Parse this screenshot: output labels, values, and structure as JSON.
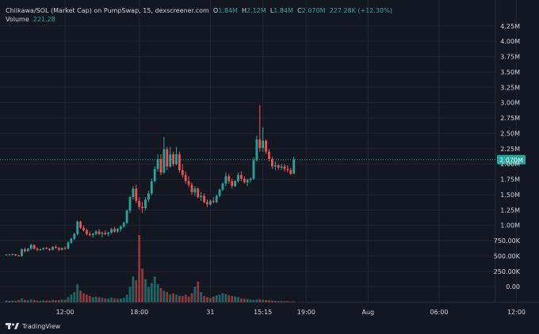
{
  "header": {
    "symbol": "Chiikawa/SOL (Market Cap) on PumpSwap, 15, dexscreener.com",
    "open_label": "O",
    "open_value": "1.84M",
    "high_label": "H",
    "high_value": "2.12M",
    "low_label": "L",
    "low_value": "1.84M",
    "close_label": "C",
    "close_value": "2.070M",
    "change": "227.28K (+12.30%)"
  },
  "volume": {
    "label": "Volume",
    "value": "221.28"
  },
  "branding": {
    "label": "TradingView"
  },
  "colors": {
    "up": "#26a69a",
    "down": "#ef5350",
    "background": "#131722",
    "grid": "#1f2433",
    "text": "#d1d4dc"
  },
  "chart_data": {
    "type": "candlestick",
    "y_unit": "market cap (USD)",
    "ylim": [
      -100000,
      4350000
    ],
    "y_ticks": [
      "0.00",
      "250.00K",
      "500.00K",
      "750.00K",
      "1.00M",
      "1.25M",
      "1.50M",
      "1.75M",
      "2.00M",
      "2.25M",
      "2.50M",
      "2.75M",
      "3.00M",
      "3.25M",
      "3.50M",
      "3.75M",
      "4.00M",
      "4.25M"
    ],
    "y_tick_values": [
      0,
      250000,
      500000,
      750000,
      1000000,
      1250000,
      1500000,
      1750000,
      2000000,
      2250000,
      2500000,
      2750000,
      3000000,
      3250000,
      3500000,
      3750000,
      4000000,
      4250000
    ],
    "x_ticks": [
      "12:00",
      "18:00",
      "31",
      "15:15",
      "19:00",
      "Aug",
      "06:00",
      "12:00"
    ],
    "x_tick_candle_index": [
      19,
      43,
      66,
      83,
      97,
      117,
      140,
      165
    ],
    "last_price": 2070000,
    "last_price_label": "2.070M",
    "candles": [
      [
        520000,
        530000,
        510000,
        525000
      ],
      [
        525000,
        535000,
        515000,
        520000
      ],
      [
        520000,
        540000,
        510000,
        530000
      ],
      [
        530000,
        525000,
        500000,
        510000
      ],
      [
        510000,
        520000,
        490000,
        500000
      ],
      [
        500000,
        620000,
        490000,
        610000
      ],
      [
        610000,
        640000,
        560000,
        580000
      ],
      [
        580000,
        630000,
        570000,
        620000
      ],
      [
        620000,
        700000,
        600000,
        680000
      ],
      [
        680000,
        690000,
        600000,
        620000
      ],
      [
        620000,
        640000,
        580000,
        600000
      ],
      [
        600000,
        620000,
        580000,
        610000
      ],
      [
        610000,
        640000,
        600000,
        630000
      ],
      [
        630000,
        650000,
        610000,
        620000
      ],
      [
        620000,
        630000,
        580000,
        600000
      ],
      [
        600000,
        660000,
        590000,
        650000
      ],
      [
        650000,
        680000,
        620000,
        630000
      ],
      [
        630000,
        650000,
        580000,
        600000
      ],
      [
        600000,
        640000,
        590000,
        630000
      ],
      [
        630000,
        660000,
        600000,
        620000
      ],
      [
        620000,
        740000,
        610000,
        720000
      ],
      [
        720000,
        800000,
        700000,
        780000
      ],
      [
        780000,
        880000,
        760000,
        860000
      ],
      [
        860000,
        1080000,
        840000,
        1060000
      ],
      [
        1060000,
        1080000,
        940000,
        960000
      ],
      [
        960000,
        1000000,
        900000,
        920000
      ],
      [
        920000,
        940000,
        840000,
        860000
      ],
      [
        860000,
        900000,
        820000,
        840000
      ],
      [
        840000,
        880000,
        800000,
        860000
      ],
      [
        860000,
        920000,
        840000,
        900000
      ],
      [
        900000,
        940000,
        840000,
        860000
      ],
      [
        860000,
        900000,
        800000,
        880000
      ],
      [
        880000,
        920000,
        840000,
        860000
      ],
      [
        860000,
        900000,
        820000,
        880000
      ],
      [
        880000,
        960000,
        860000,
        940000
      ],
      [
        940000,
        980000,
        880000,
        900000
      ],
      [
        900000,
        960000,
        880000,
        940000
      ],
      [
        940000,
        1000000,
        900000,
        980000
      ],
      [
        980000,
        1060000,
        960000,
        1040000
      ],
      [
        1040000,
        1260000,
        1020000,
        1240000
      ],
      [
        1240000,
        1480000,
        1200000,
        1460000
      ],
      [
        1460000,
        1640000,
        1420000,
        1600000
      ],
      [
        1600000,
        1660000,
        1360000,
        1400000
      ],
      [
        1400000,
        1460000,
        1260000,
        1300000
      ],
      [
        1300000,
        1380000,
        1200000,
        1280000
      ],
      [
        1280000,
        1460000,
        1250000,
        1420000
      ],
      [
        1420000,
        1560000,
        1380000,
        1520000
      ],
      [
        1520000,
        1760000,
        1490000,
        1720000
      ],
      [
        1720000,
        1960000,
        1700000,
        1920000
      ],
      [
        1920000,
        2160000,
        1880000,
        2080000
      ],
      [
        2080000,
        2160000,
        1820000,
        1860000
      ],
      [
        1860000,
        2440000,
        1840000,
        2240000
      ],
      [
        2240000,
        2280000,
        1900000,
        1960000
      ],
      [
        1960000,
        2280000,
        1940000,
        2160000
      ],
      [
        2160000,
        2200000,
        1960000,
        2000000
      ],
      [
        2000000,
        2280000,
        1980000,
        2160000
      ],
      [
        2160000,
        2200000,
        1860000,
        1900000
      ],
      [
        1900000,
        2000000,
        1780000,
        1820000
      ],
      [
        1820000,
        1880000,
        1680000,
        1720000
      ],
      [
        1720000,
        1800000,
        1620000,
        1660000
      ],
      [
        1660000,
        1700000,
        1500000,
        1540000
      ],
      [
        1540000,
        1640000,
        1480000,
        1600000
      ],
      [
        1600000,
        1620000,
        1440000,
        1460000
      ],
      [
        1460000,
        1540000,
        1400000,
        1480000
      ],
      [
        1480000,
        1520000,
        1360000,
        1380000
      ],
      [
        1380000,
        1420000,
        1300000,
        1340000
      ],
      [
        1340000,
        1420000,
        1320000,
        1400000
      ],
      [
        1400000,
        1460000,
        1360000,
        1380000
      ],
      [
        1380000,
        1500000,
        1360000,
        1480000
      ],
      [
        1480000,
        1600000,
        1460000,
        1580000
      ],
      [
        1580000,
        1700000,
        1560000,
        1680000
      ],
      [
        1680000,
        1860000,
        1640000,
        1800000
      ],
      [
        1800000,
        1840000,
        1680000,
        1720000
      ],
      [
        1720000,
        1760000,
        1600000,
        1640000
      ],
      [
        1640000,
        1740000,
        1620000,
        1720000
      ],
      [
        1720000,
        1860000,
        1700000,
        1820000
      ],
      [
        1820000,
        1880000,
        1720000,
        1760000
      ],
      [
        1760000,
        1800000,
        1680000,
        1700000
      ],
      [
        1700000,
        1760000,
        1640000,
        1740000
      ],
      [
        1740000,
        1780000,
        1700000,
        1760000
      ],
      [
        1760000,
        2100000,
        1740000,
        2060000
      ],
      [
        2060000,
        2460000,
        2040000,
        2400000
      ],
      [
        2400000,
        2960000,
        2200000,
        2260000
      ],
      [
        2260000,
        2600000,
        2200000,
        2380000
      ],
      [
        2380000,
        2400000,
        2160000,
        2200000
      ],
      [
        2200000,
        2240000,
        2040000,
        2080000
      ],
      [
        2080000,
        2120000,
        1920000,
        1960000
      ],
      [
        1960000,
        2040000,
        1900000,
        1980000
      ],
      [
        1980000,
        2000000,
        1900000,
        1940000
      ],
      [
        1940000,
        2000000,
        1900000,
        1960000
      ],
      [
        1960000,
        2000000,
        1880000,
        1920000
      ],
      [
        1920000,
        1980000,
        1860000,
        1900000
      ],
      [
        1900000,
        1940000,
        1820000,
        1840000
      ],
      [
        1840000,
        2120000,
        1840000,
        2070000
      ]
    ],
    "volume": [
      15,
      12,
      14,
      10,
      18,
      30,
      20,
      16,
      22,
      18,
      14,
      12,
      16,
      14,
      12,
      20,
      16,
      18,
      22,
      20,
      40,
      60,
      80,
      140,
      90,
      70,
      60,
      50,
      40,
      45,
      40,
      35,
      30,
      28,
      35,
      30,
      28,
      30,
      35,
      60,
      120,
      200,
      170,
      520,
      260,
      180,
      120,
      150,
      200,
      140,
      110,
      90,
      80,
      60,
      70,
      60,
      50,
      50,
      60,
      45,
      70,
      120,
      160,
      80,
      50,
      40,
      35,
      45,
      55,
      60,
      70,
      65,
      55,
      50,
      45,
      40,
      30,
      28,
      25,
      22,
      20,
      22,
      24,
      20,
      18,
      16,
      14,
      12,
      10,
      10,
      8,
      8,
      6,
      6
    ]
  }
}
